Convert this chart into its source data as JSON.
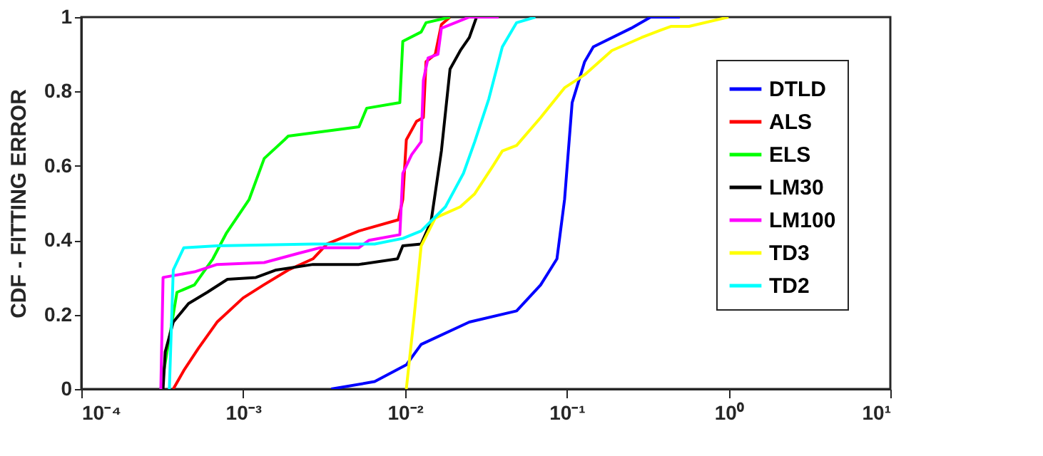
{
  "chart_data": {
    "type": "line",
    "ylabel": "CDF - FITTING ERROR",
    "log": "x",
    "xlim": [
      0.0001,
      10
    ],
    "ylim": [
      0,
      1
    ],
    "xticks": [
      {
        "value": 0.0001,
        "label": "10⁻⁴"
      },
      {
        "value": 0.001,
        "label": "10⁻³"
      },
      {
        "value": 0.01,
        "label": "10⁻²"
      },
      {
        "value": 0.1,
        "label": "10⁻¹"
      },
      {
        "value": 1,
        "label": "10⁰"
      },
      {
        "value": 10,
        "label": "10¹"
      }
    ],
    "yticks": [
      0,
      0.2,
      0.4,
      0.6,
      0.8,
      1
    ],
    "grid": false,
    "legend": "top right",
    "marker": "none",
    "line_style": "solid",
    "series": [
      {
        "name": "DTLD",
        "color": "#0000ff",
        "x": [
          0.0035,
          0.0065,
          0.0102,
          0.0126,
          0.025,
          0.049,
          0.069,
          0.087,
          0.097,
          0.108,
          0.129,
          0.146,
          0.25,
          0.33,
          0.5
        ],
        "values": [
          0,
          0.02,
          0.065,
          0.12,
          0.18,
          0.21,
          0.28,
          0.35,
          0.51,
          0.77,
          0.88,
          0.92,
          0.97,
          1,
          1
        ]
      },
      {
        "name": "ALS",
        "color": "#ff0000",
        "x": [
          0.00037,
          0.00043,
          0.00053,
          0.00069,
          0.001,
          0.00134,
          0.0019,
          0.0027,
          0.0033,
          0.0052,
          0.0091,
          0.0097,
          0.0102,
          0.0118,
          0.013,
          0.0135,
          0.0154,
          0.0168,
          0.019
        ],
        "values": [
          0,
          0.05,
          0.11,
          0.18,
          0.245,
          0.28,
          0.32,
          0.35,
          0.39,
          0.425,
          0.455,
          0.51,
          0.67,
          0.72,
          0.73,
          0.88,
          0.9,
          0.98,
          1
        ]
      },
      {
        "name": "ELS",
        "color": "#00ff00",
        "x": [
          0.00031,
          0.00039,
          0.0005,
          0.00065,
          0.00079,
          0.00109,
          0.00135,
          0.0018,
          0.0019,
          0.0052,
          0.0058,
          0.0093,
          0.0097,
          0.0126,
          0.0135,
          0.019
        ],
        "values": [
          0,
          0.26,
          0.28,
          0.35,
          0.42,
          0.51,
          0.62,
          0.67,
          0.68,
          0.705,
          0.755,
          0.77,
          0.935,
          0.96,
          0.985,
          1
        ]
      },
      {
        "name": "LM30",
        "color": "#000000",
        "x": [
          0.00032,
          0.00033,
          0.00037,
          0.00046,
          0.0006,
          0.0008,
          0.0012,
          0.0016,
          0.0027,
          0.0052,
          0.009,
          0.0097,
          0.0126,
          0.0145,
          0.0168,
          0.019,
          0.022,
          0.025,
          0.0277
        ],
        "values": [
          0,
          0.1,
          0.18,
          0.23,
          0.26,
          0.295,
          0.3,
          0.32,
          0.335,
          0.335,
          0.35,
          0.385,
          0.39,
          0.45,
          0.64,
          0.86,
          0.91,
          0.945,
          1
        ]
      },
      {
        "name": "LM100",
        "color": "#ff00ff",
        "x": [
          0.00031,
          0.00032,
          0.0005,
          0.00069,
          0.00135,
          0.0022,
          0.003,
          0.0052,
          0.006,
          0.0093,
          0.0097,
          0.011,
          0.0126,
          0.013,
          0.0139,
          0.016,
          0.0168,
          0.025,
          0.038
        ],
        "values": [
          0,
          0.3,
          0.315,
          0.335,
          0.34,
          0.365,
          0.38,
          0.38,
          0.4,
          0.415,
          0.58,
          0.63,
          0.665,
          0.83,
          0.89,
          0.9,
          0.97,
          1,
          1
        ]
      },
      {
        "name": "TD3",
        "color": "#ffff00",
        "x": [
          0.0102,
          0.0114,
          0.0126,
          0.0154,
          0.022,
          0.027,
          0.035,
          0.04,
          0.049,
          0.069,
          0.097,
          0.129,
          0.19,
          0.29,
          0.38,
          0.44,
          0.57,
          1
        ],
        "values": [
          0,
          0.195,
          0.385,
          0.46,
          0.49,
          0.525,
          0.6,
          0.64,
          0.655,
          0.73,
          0.81,
          0.845,
          0.91,
          0.945,
          0.965,
          0.975,
          0.975,
          1
        ]
      },
      {
        "name": "TD2",
        "color": "#00ffff",
        "x": [
          0.00035,
          0.00037,
          0.00043,
          0.00069,
          0.0027,
          0.0065,
          0.0097,
          0.0126,
          0.0178,
          0.023,
          0.027,
          0.033,
          0.04,
          0.049,
          0.064
        ],
        "values": [
          0,
          0.32,
          0.38,
          0.385,
          0.39,
          0.39,
          0.405,
          0.425,
          0.49,
          0.58,
          0.665,
          0.78,
          0.92,
          0.985,
          1
        ]
      }
    ]
  }
}
